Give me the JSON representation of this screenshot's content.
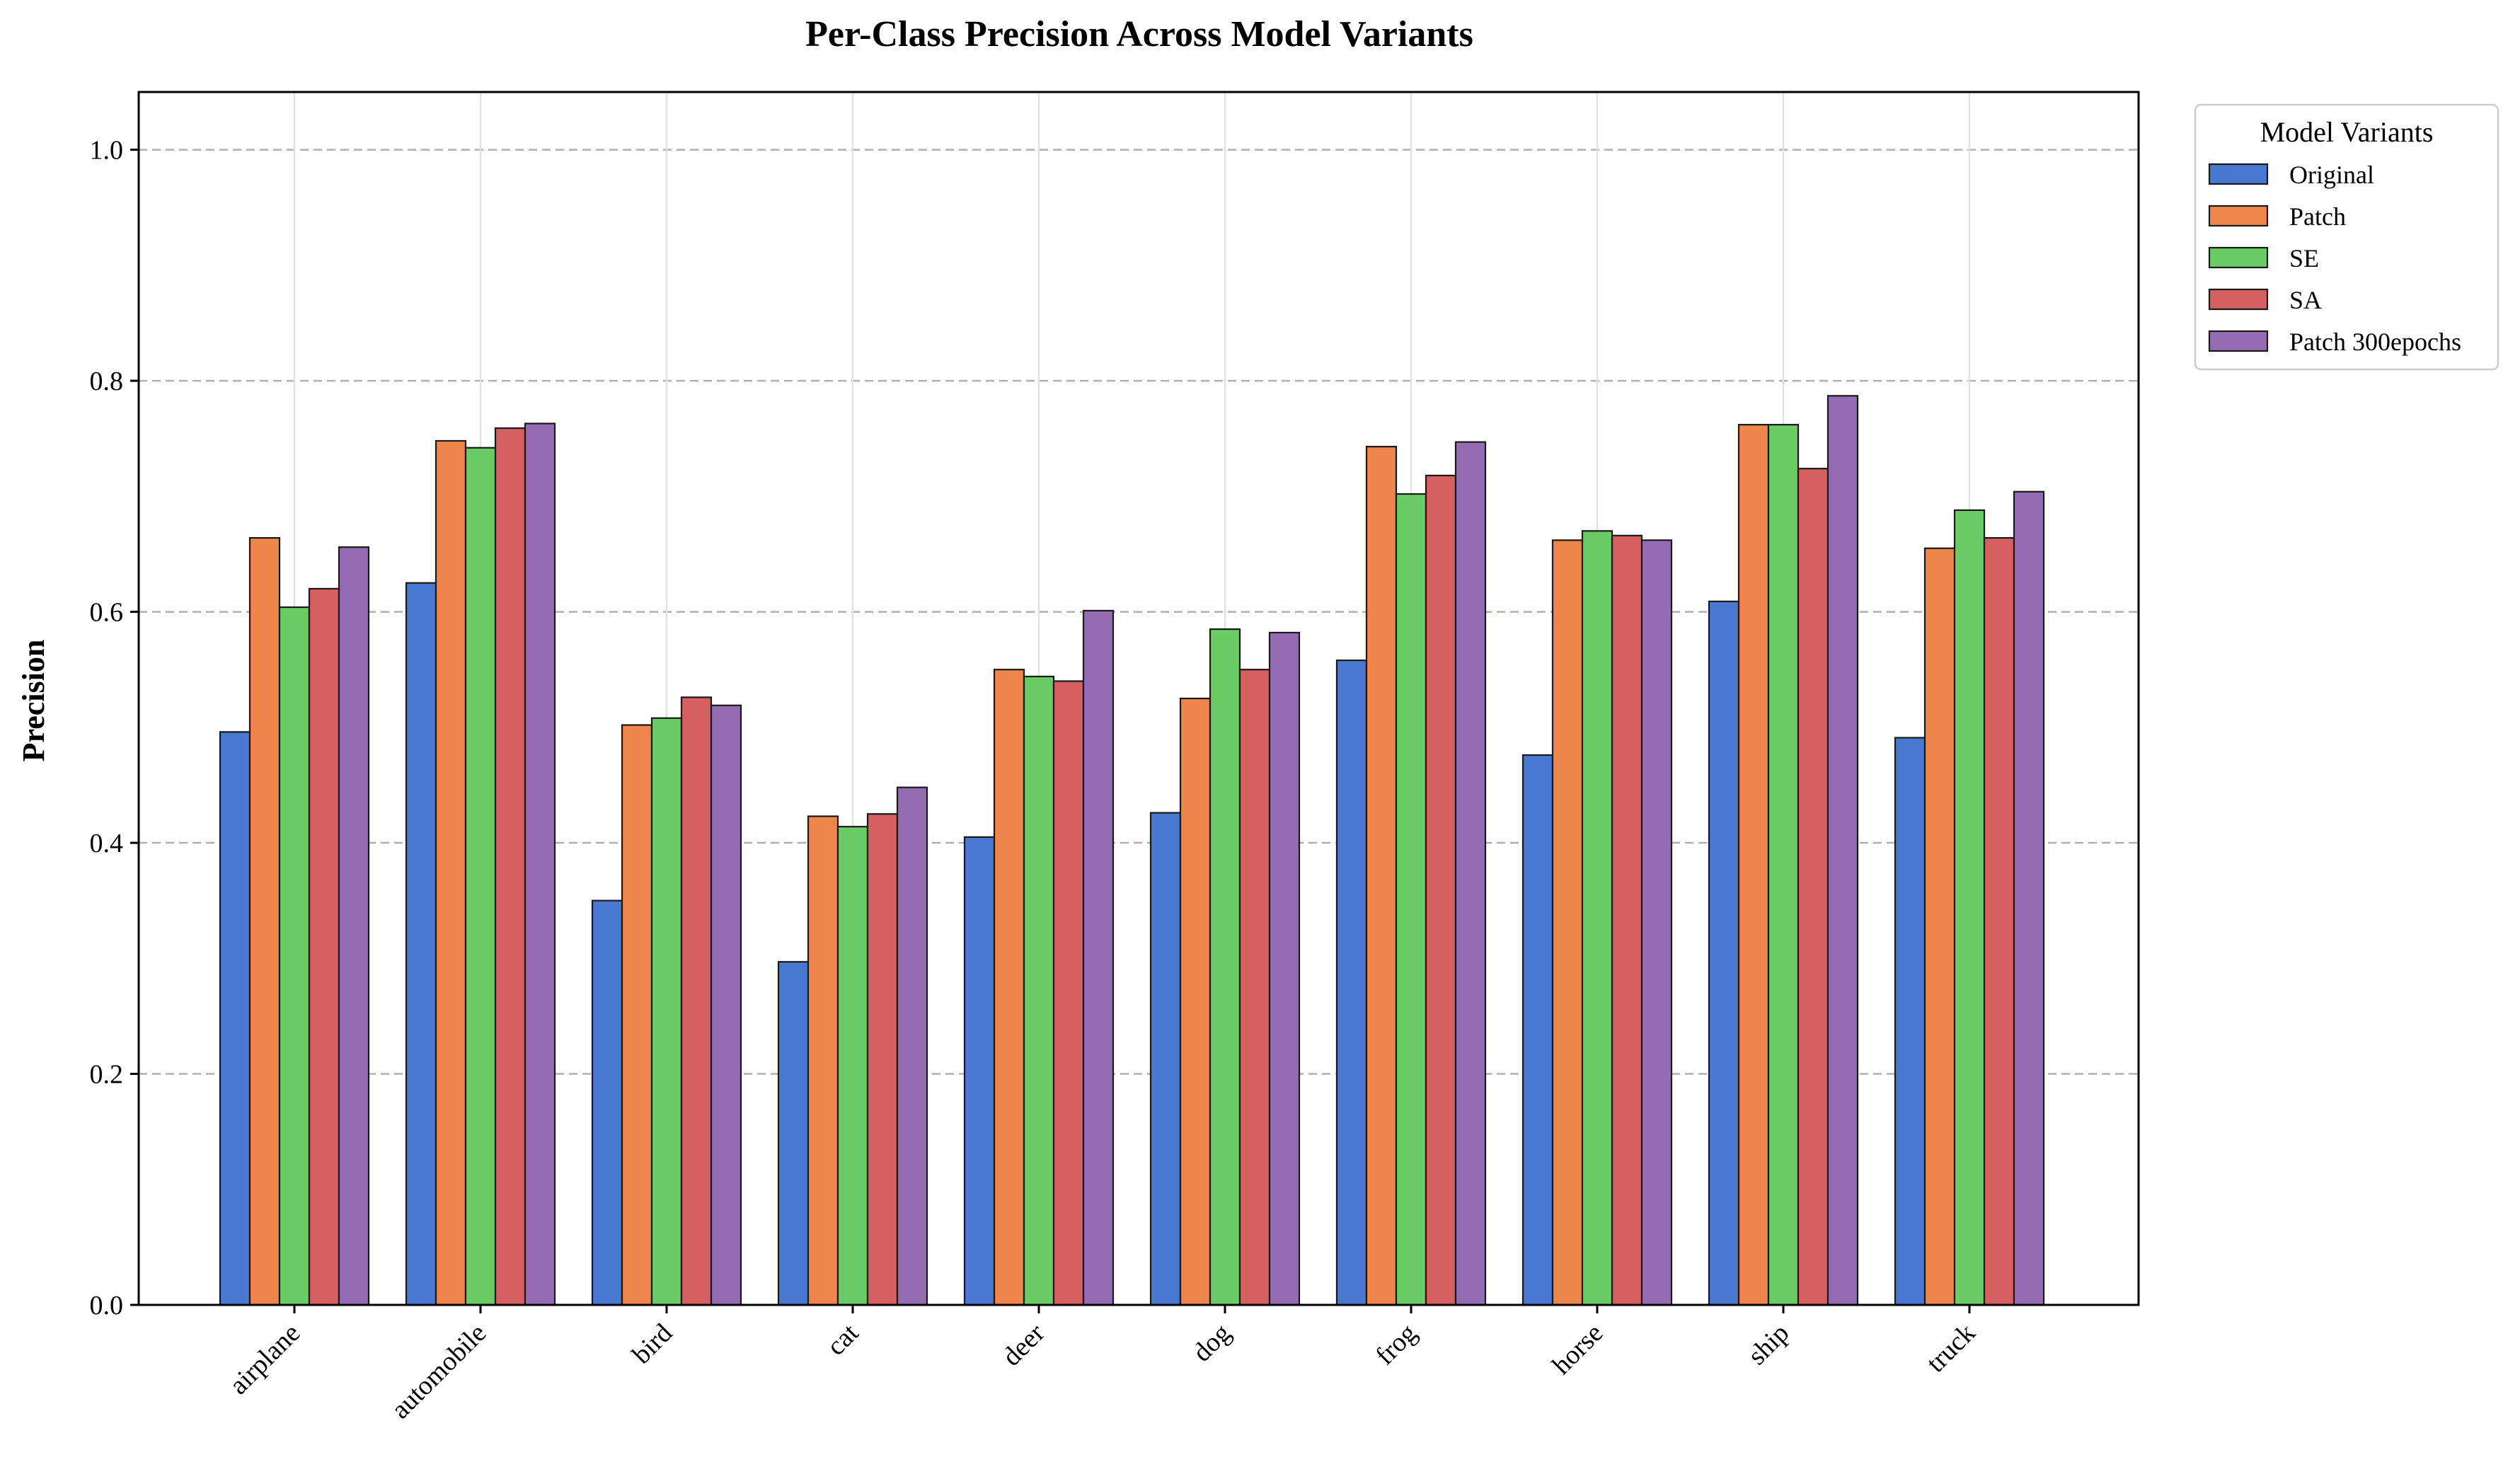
{
  "chart_data": {
    "type": "bar",
    "title": "Per-Class Precision Across Model Variants",
    "xlabel": "",
    "ylabel": "Precision",
    "ylim": [
      0,
      1.05
    ],
    "yticks": [
      0.0,
      0.2,
      0.4,
      0.6,
      0.8,
      1.0
    ],
    "ytick_labels": [
      "0.0",
      "0.2",
      "0.4",
      "0.6",
      "0.8",
      "1.0"
    ],
    "grid": true,
    "legend_title": "Model Variants",
    "legend_position": "outside top-right",
    "categories": [
      "airplane",
      "automobile",
      "bird",
      "cat",
      "deer",
      "dog",
      "frog",
      "horse",
      "ship",
      "truck"
    ],
    "series": [
      {
        "name": "Original",
        "color": "#4878d0",
        "values": [
          0.496,
          0.625,
          0.35,
          0.297,
          0.405,
          0.426,
          0.558,
          0.476,
          0.609,
          0.491
        ]
      },
      {
        "name": "Patch",
        "color": "#ee854a",
        "values": [
          0.664,
          0.748,
          0.502,
          0.423,
          0.55,
          0.525,
          0.743,
          0.662,
          0.762,
          0.655
        ]
      },
      {
        "name": "SE",
        "color": "#6acc64",
        "values": [
          0.604,
          0.742,
          0.508,
          0.414,
          0.544,
          0.585,
          0.702,
          0.67,
          0.762,
          0.688
        ]
      },
      {
        "name": "SA",
        "color": "#d65f5f",
        "values": [
          0.62,
          0.759,
          0.526,
          0.425,
          0.54,
          0.55,
          0.718,
          0.666,
          0.724,
          0.664
        ]
      },
      {
        "name": "Patch 300epochs",
        "color": "#956cb4",
        "values": [
          0.656,
          0.763,
          0.519,
          0.448,
          0.601,
          0.582,
          0.747,
          0.662,
          0.787,
          0.704
        ]
      }
    ]
  }
}
